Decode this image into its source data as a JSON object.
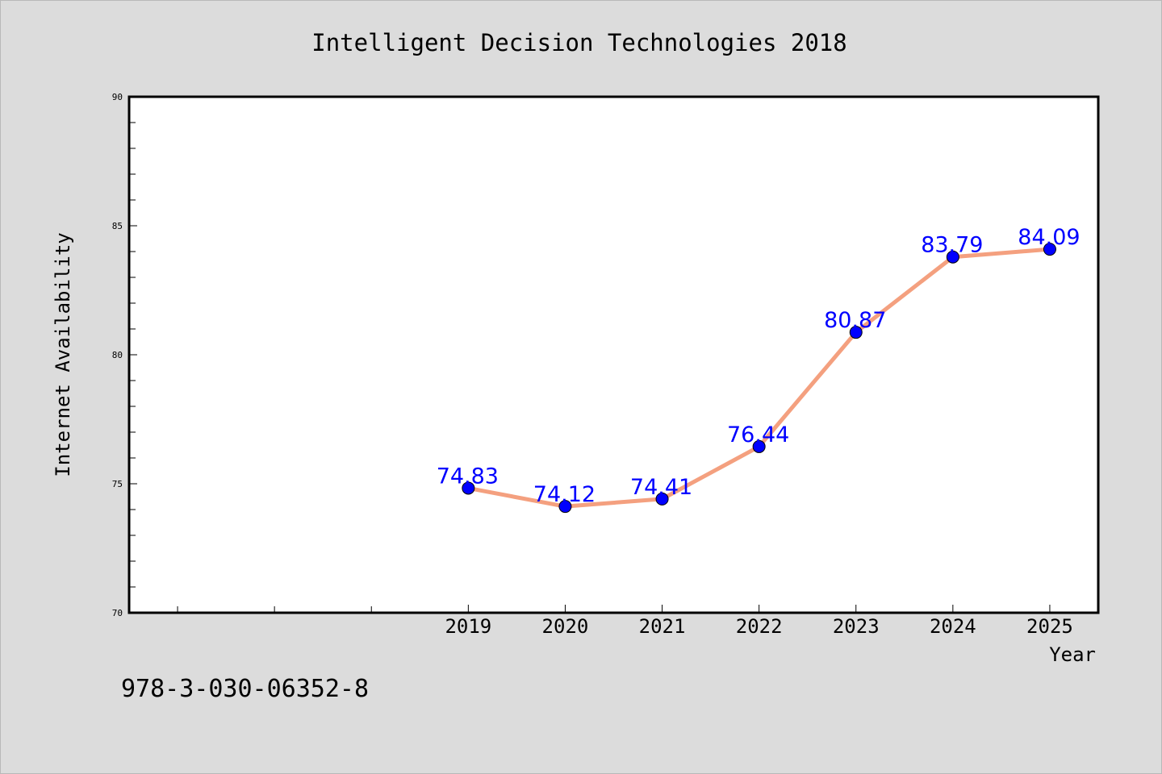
{
  "chart_data": {
    "type": "line",
    "title": "Intelligent Decision Technologies 2018",
    "xlabel": "Year",
    "ylabel": "Internet Availability",
    "footer_text": "978-3-030-06352-8",
    "x": [
      "2019",
      "2020",
      "2021",
      "2022",
      "2023",
      "2024",
      "2025"
    ],
    "series": [
      {
        "values": [
          74.83,
          74.12,
          74.41,
          76.44,
          80.87,
          83.79,
          84.09
        ],
        "labels": [
          "74.83",
          "74.12",
          "74.41",
          "76.44",
          "80.87",
          "83.79",
          "84.09"
        ]
      }
    ],
    "ylim": [
      70,
      90
    ],
    "yticks": [
      "70",
      "75",
      "80",
      "85",
      "90"
    ],
    "xlim": [
      2015.5,
      2025.5
    ],
    "grid": false,
    "colors": {
      "line": "#f4a07f",
      "marker": "#0000ff",
      "labels": "#0000ff",
      "background": "#dcdcdc",
      "plot_area": "#ffffff"
    }
  }
}
